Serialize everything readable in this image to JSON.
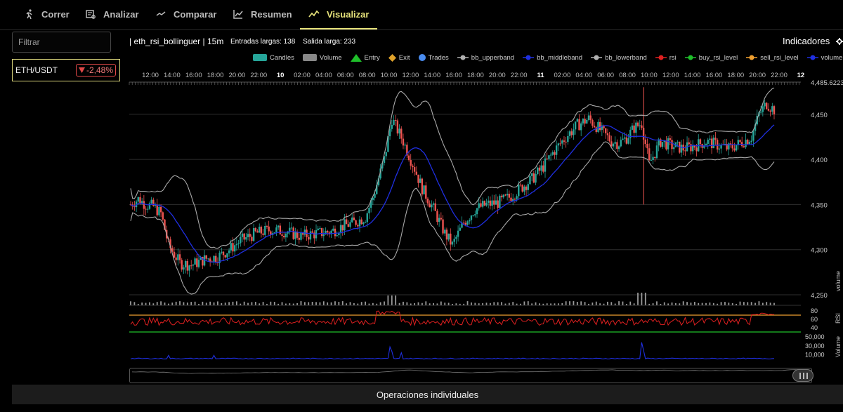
{
  "nav": {
    "tabs": [
      {
        "label": "Correr",
        "icon": "runner-icon"
      },
      {
        "label": "Analizar",
        "icon": "analyze-icon"
      },
      {
        "label": "Comparar",
        "icon": "compare-icon"
      },
      {
        "label": "Resumen",
        "icon": "line-chart-icon"
      },
      {
        "label": "Visualizar",
        "icon": "trend-icon",
        "active": true
      }
    ],
    "active_color": "#e6e27a"
  },
  "sidebar": {
    "filter_placeholder": "Filtrar",
    "pair": {
      "symbol": "ETH/USDT",
      "change": "-2,48%",
      "change_color": "#e04848"
    }
  },
  "header": {
    "strategy": "| eth_rsi_bollinguer | 15m",
    "entries": "Entradas largas: 138",
    "exits": "Salida larga: 233",
    "indicators_label": "Indicadores"
  },
  "legend": [
    {
      "label": "Candles",
      "color": "#26a69a"
    },
    {
      "label": "Volume",
      "color": "#888888"
    },
    {
      "label": "Entry",
      "color": "#1fbf2a"
    },
    {
      "label": "Exit",
      "color": "#e0a22a"
    },
    {
      "label": "Trades",
      "color": "#4a8cf0"
    },
    {
      "label": "bb_upperband",
      "color": "#b0b0b0"
    },
    {
      "label": "bb_middleband",
      "color": "#1f2fe0"
    },
    {
      "label": "bb_lowerband",
      "color": "#b0b0b0"
    },
    {
      "label": "rsi",
      "color": "#e02020"
    },
    {
      "label": "buy_rsi_level",
      "color": "#1fbf2a"
    },
    {
      "label": "sell_rsi_level",
      "color": "#f0a030"
    },
    {
      "label": "volume",
      "color": "#1f2fe0"
    }
  ],
  "chart_data": {
    "type": "candlestick",
    "x_ticks": [
      "12:00",
      "14:00",
      "16:00",
      "18:00",
      "20:00",
      "22:00",
      "10",
      "02:00",
      "04:00",
      "06:00",
      "08:00",
      "10:00",
      "12:00",
      "14:00",
      "16:00",
      "18:00",
      "20:00",
      "22:00",
      "11",
      "02:00",
      "04:00",
      "06:00",
      "08:00",
      "10:00",
      "12:00",
      "14:00",
      "16:00",
      "18:00",
      "20:00",
      "22:00",
      "12"
    ],
    "price_axis": {
      "ticks": [
        "4,485.6223",
        "4,450",
        "4,400",
        "4,350",
        "4,300",
        "4,250"
      ],
      "ylim": [
        4250,
        4485.6223
      ]
    },
    "rsi_axis": {
      "ticks": [
        "80",
        "60",
        "40"
      ],
      "sell_level": 70,
      "buy_level": 30
    },
    "volume_axis": {
      "ticks": [
        "50,000",
        "30,000",
        "10,000"
      ]
    },
    "price_path": [
      [
        0,
        4350
      ],
      [
        4,
        4356
      ],
      [
        8,
        4350
      ],
      [
        12,
        4348
      ],
      [
        16,
        4340
      ],
      [
        20,
        4305
      ],
      [
        26,
        4285
      ],
      [
        32,
        4283
      ],
      [
        40,
        4290
      ],
      [
        46,
        4292
      ],
      [
        52,
        4300
      ],
      [
        58,
        4310
      ],
      [
        66,
        4318
      ],
      [
        74,
        4322
      ],
      [
        82,
        4320
      ],
      [
        90,
        4315
      ],
      [
        98,
        4318
      ],
      [
        106,
        4320
      ],
      [
        112,
        4326
      ],
      [
        118,
        4330
      ],
      [
        124,
        4336
      ],
      [
        128,
        4358
      ],
      [
        134,
        4400
      ],
      [
        138,
        4445
      ],
      [
        144,
        4420
      ],
      [
        150,
        4390
      ],
      [
        154,
        4368
      ],
      [
        160,
        4345
      ],
      [
        166,
        4318
      ],
      [
        170,
        4305
      ],
      [
        176,
        4330
      ],
      [
        182,
        4345
      ],
      [
        188,
        4350
      ],
      [
        194,
        4352
      ],
      [
        200,
        4358
      ],
      [
        206,
        4368
      ],
      [
        212,
        4378
      ],
      [
        218,
        4392
      ],
      [
        224,
        4410
      ],
      [
        230,
        4425
      ],
      [
        236,
        4438
      ],
      [
        242,
        4445
      ],
      [
        248,
        4433
      ],
      [
        254,
        4420
      ],
      [
        258,
        4418
      ],
      [
        262,
        4424
      ],
      [
        266,
        4435
      ],
      [
        270,
        4440
      ],
      [
        274,
        4395
      ],
      [
        280,
        4420
      ],
      [
        286,
        4415
      ],
      [
        292,
        4412
      ],
      [
        298,
        4415
      ],
      [
        304,
        4420
      ],
      [
        310,
        4416
      ],
      [
        316,
        4412
      ],
      [
        322,
        4418
      ],
      [
        328,
        4425
      ],
      [
        332,
        4450
      ],
      [
        336,
        4462
      ],
      [
        340,
        4455
      ]
    ],
    "series": [
      {
        "name": "bb_upperband"
      },
      {
        "name": "bb_middleband"
      },
      {
        "name": "bb_lowerband"
      },
      {
        "name": "rsi"
      },
      {
        "name": "buy_rsi_level"
      },
      {
        "name": "sell_rsi_level"
      },
      {
        "name": "volume"
      }
    ],
    "axis_titles": {
      "volume": "volume",
      "rsi": "RSI",
      "volume2": "Volume"
    }
  },
  "footer": {
    "label": "Operaciones individuales"
  }
}
